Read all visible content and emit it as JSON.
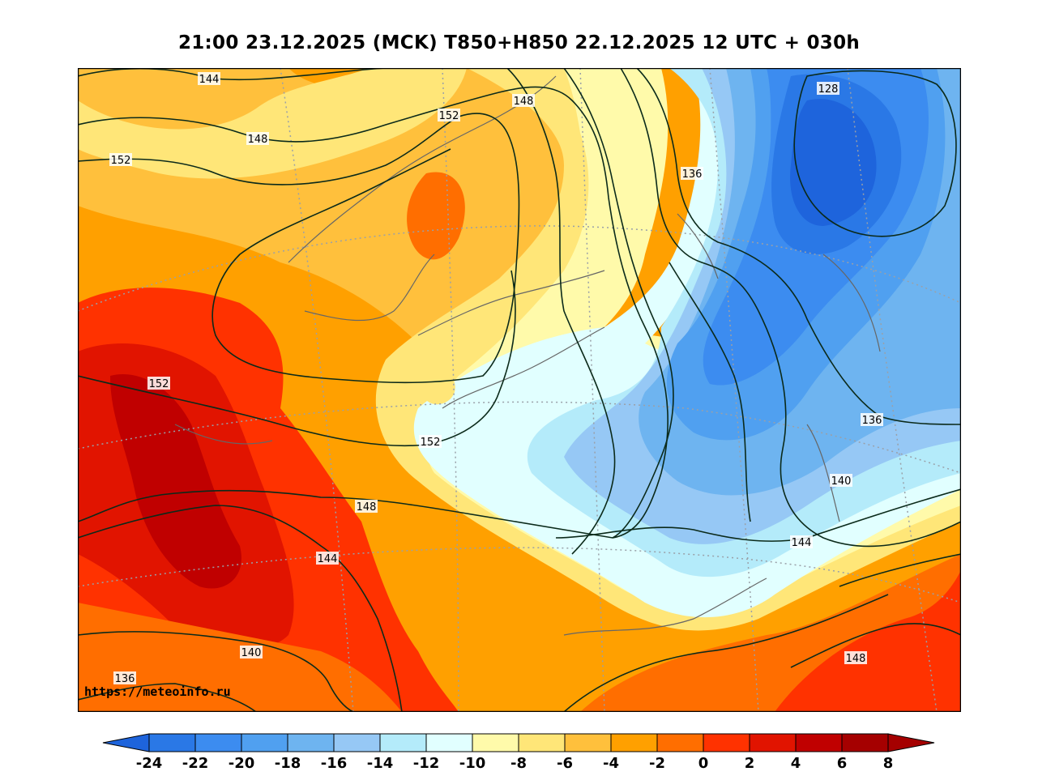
{
  "title": "21:00 23.12.2025 (MCK) T850+H850 22.12.2025 12 UTC + 030h",
  "watermark": "https://meteoinfo.ru",
  "legend": {
    "colors": [
      "#1e64dc",
      "#2a78e6",
      "#3c8cf0",
      "#50a0f0",
      "#6eb4f0",
      "#96c8f5",
      "#b4ebfa",
      "#e1ffff",
      "#fffaaa",
      "#ffe678",
      "#ffc03c",
      "#ffa000",
      "#ff6e00",
      "#ff3200",
      "#e11400",
      "#c00000",
      "#a50000"
    ],
    "ticks": [
      "-24",
      "-22",
      "-20",
      "-18",
      "-16",
      "-14",
      "-12",
      "-10",
      "-8",
      "-6",
      "-4",
      "-2",
      "0",
      "2",
      "4",
      "6",
      "8"
    ],
    "extend": "both"
  },
  "contour_labels": [
    {
      "text": "144",
      "pos": "top-left"
    },
    {
      "text": "148",
      "pos": "north-sea"
    },
    {
      "text": "152",
      "pos": "west"
    },
    {
      "text": "152",
      "pos": "norway-north"
    },
    {
      "text": "148",
      "pos": "finnmark"
    },
    {
      "text": "136",
      "pos": "kola"
    },
    {
      "text": "128",
      "pos": "barents-low"
    },
    {
      "text": "152",
      "pos": "germany"
    },
    {
      "text": "152",
      "pos": "baltic"
    },
    {
      "text": "148",
      "pos": "belarus"
    },
    {
      "text": "144",
      "pos": "ukraine"
    },
    {
      "text": "140",
      "pos": "balkans"
    },
    {
      "text": "136",
      "pos": "mediterranean"
    },
    {
      "text": "136",
      "pos": "urals"
    },
    {
      "text": "140",
      "pos": "kazakh-north"
    },
    {
      "text": "144",
      "pos": "kazakh"
    },
    {
      "text": "148",
      "pos": "caspian-east"
    }
  ]
}
